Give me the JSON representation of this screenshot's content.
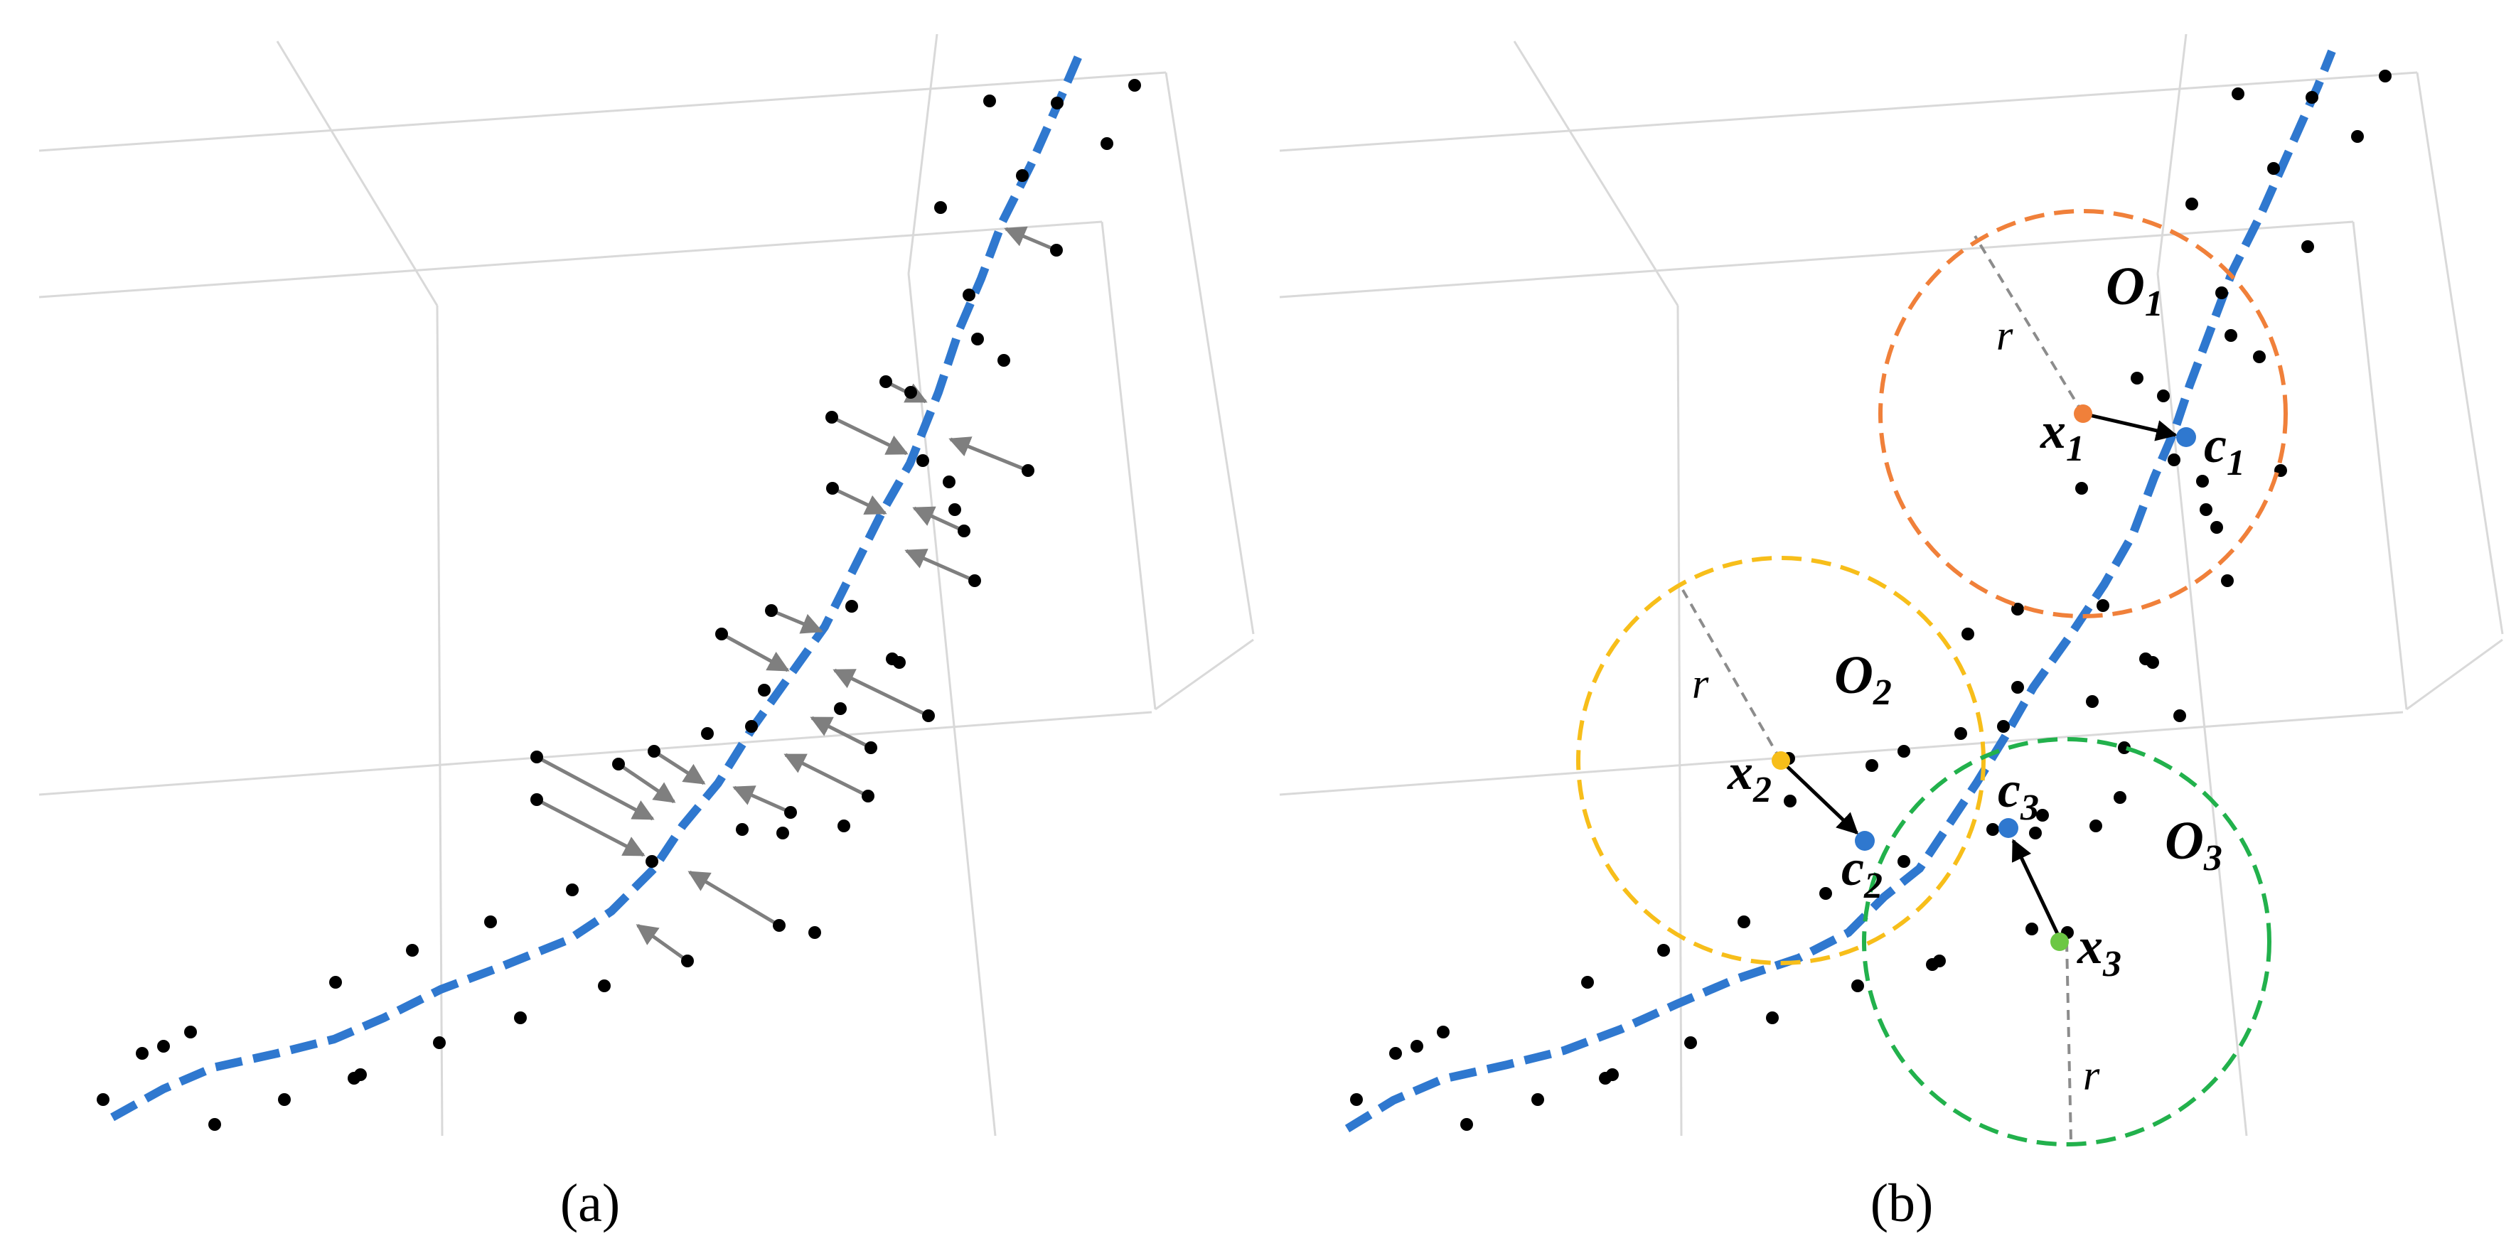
{
  "panels": [
    {
      "id": "a",
      "caption": "(a)"
    },
    {
      "id": "b",
      "caption": "(b)"
    }
  ],
  "circles": [
    {
      "center": "x",
      "center_sub": "1",
      "target": "c",
      "target_sub": "1",
      "label": "O",
      "label_sub": "1",
      "radius_label": "r",
      "color": "#f0803a"
    },
    {
      "center": "x",
      "center_sub": "2",
      "target": "c",
      "target_sub": "2",
      "label": "O",
      "label_sub": "2",
      "radius_label": "r",
      "color": "#f7be1a"
    },
    {
      "center": "x",
      "center_sub": "3",
      "target": "c",
      "target_sub": "3",
      "label": "O",
      "label_sub": "3",
      "radius_label": "r",
      "color": "#22b14c"
    }
  ],
  "colors": {
    "curve": "#2f78cf",
    "point": "#000000",
    "arrow": "#7f7f7f",
    "grid": "#d9d9d9",
    "center_point": "#2f78cf"
  }
}
